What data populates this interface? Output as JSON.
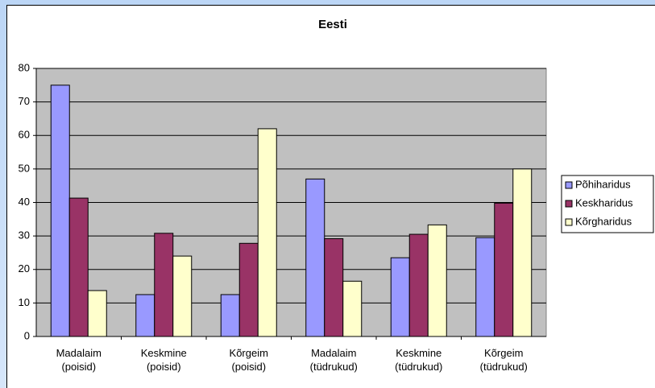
{
  "chart_data": {
    "type": "bar",
    "title": "Eesti",
    "categories": [
      "Madalaim\n(poisid)",
      "Keskmine\n(poisid)",
      "Kõrgeim\n(poisid)",
      "Madalaim\n(tüdrukud)",
      "Keskmine\n(tüdrukud)",
      "Kõrgeim\n(tüdrukud)"
    ],
    "series": [
      {
        "name": "Põhiharidus",
        "color": "#9999ff",
        "values": [
          75,
          12.5,
          12.5,
          47,
          23.5,
          29.5
        ]
      },
      {
        "name": "Keskharidus",
        "color": "#993366",
        "values": [
          41.3,
          30.8,
          27.8,
          29.2,
          30.5,
          39.8
        ]
      },
      {
        "name": "Kõrgharidus",
        "color": "#ffffcc",
        "values": [
          13.7,
          24,
          62,
          16.5,
          33.3,
          50
        ]
      }
    ],
    "ylim": [
      0,
      80
    ],
    "yticks": [
      0,
      10,
      20,
      30,
      40,
      50,
      60,
      70,
      80
    ],
    "grid": true,
    "legend": "right"
  }
}
